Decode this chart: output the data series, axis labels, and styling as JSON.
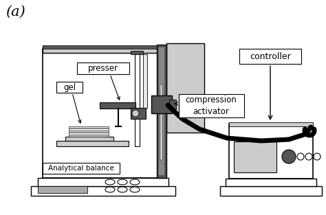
{
  "bg_color": "#ffffff",
  "label_a": "(a)",
  "label_presser": "presser",
  "label_gel": "gel",
  "label_compression": "compression\nactivator",
  "label_balance": "Analytical balance",
  "label_controller": "controller",
  "lc": "#000000",
  "gray_light": "#cccccc",
  "gray_medium": "#aaaaaa",
  "gray_dark": "#555555",
  "gray_panel": "#b0b0b0"
}
